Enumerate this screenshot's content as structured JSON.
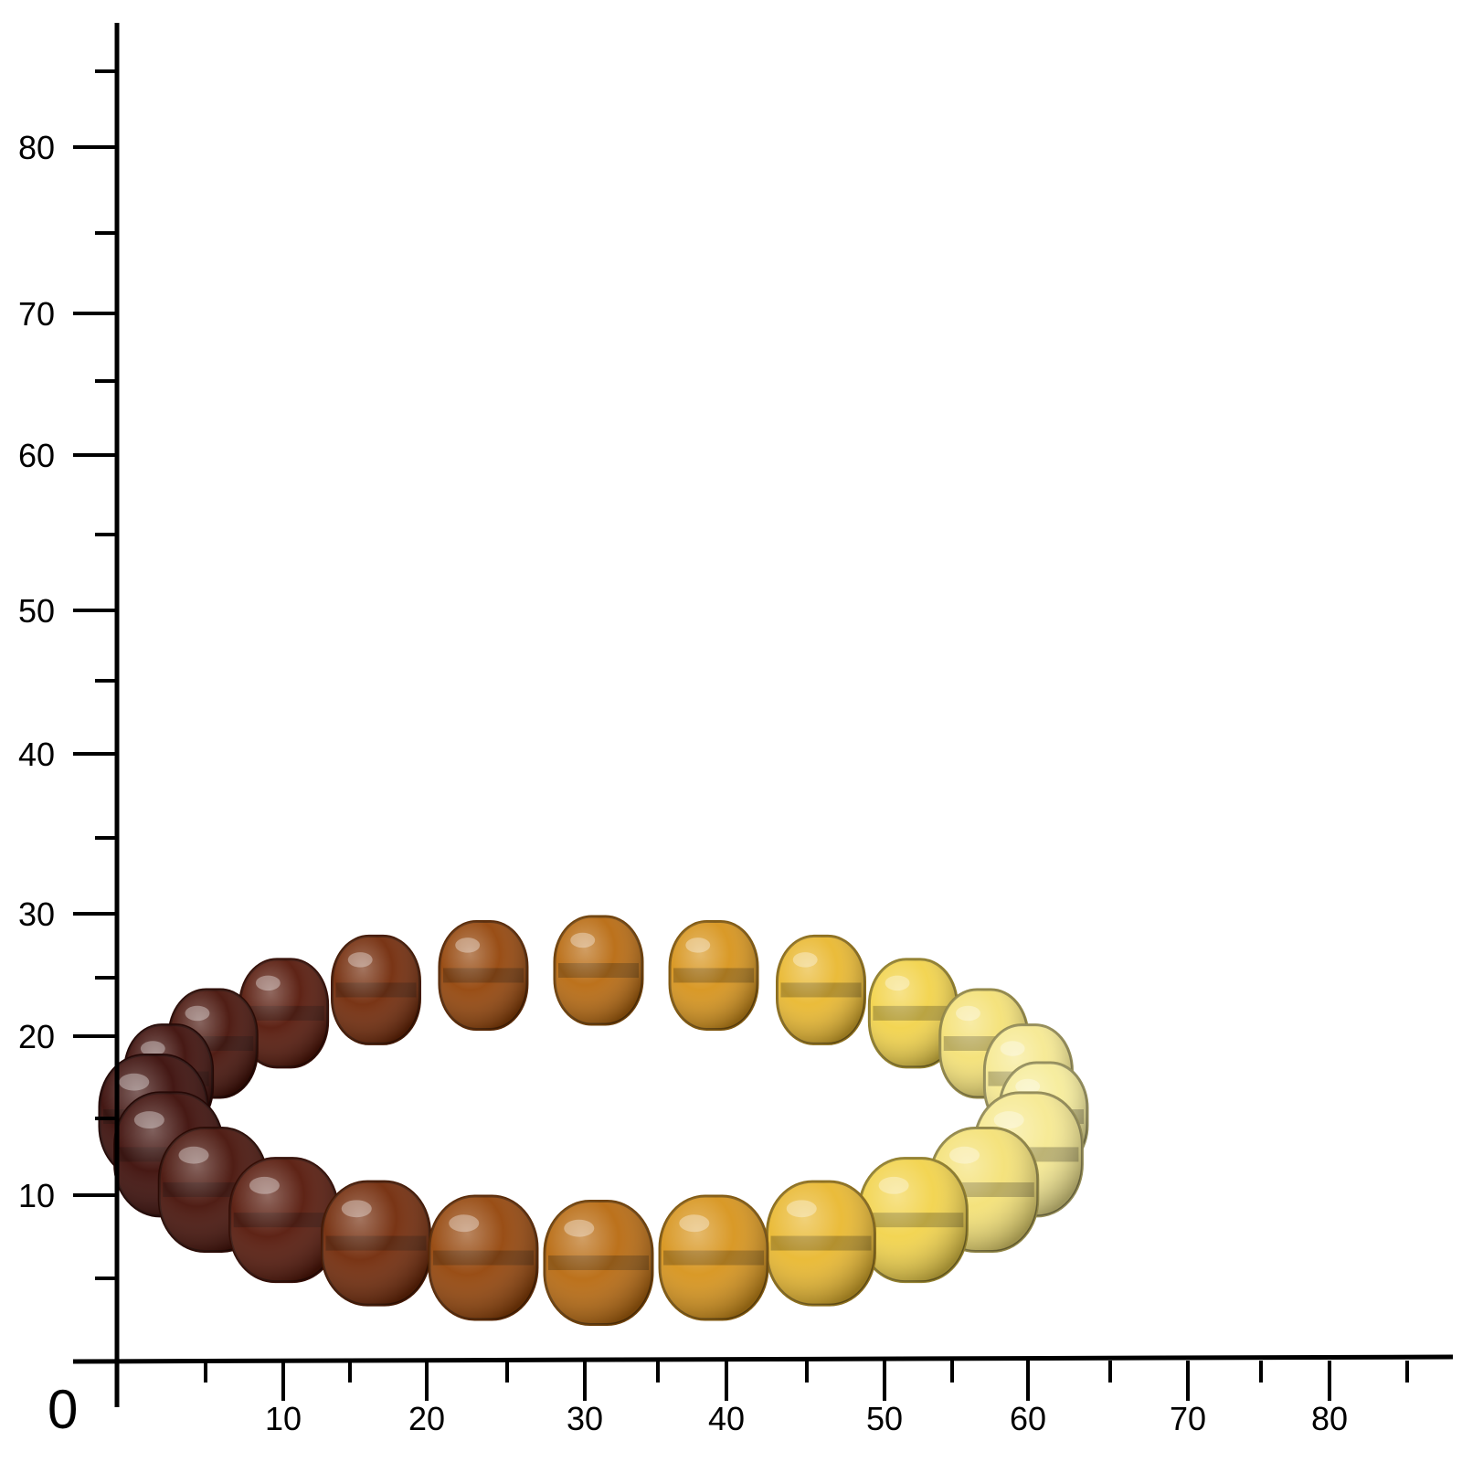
{
  "scale": {
    "origin_label": "0",
    "y_axis": {
      "major_labels": [
        "10",
        "20",
        "30",
        "40",
        "50",
        "60",
        "70",
        "80"
      ]
    },
    "x_axis": {
      "major_labels": [
        "10",
        "20",
        "30",
        "40",
        "50",
        "60",
        "70",
        "80"
      ]
    }
  },
  "subject": {
    "kind": "amber-bracelet",
    "bead_count": 24,
    "color_gradient": [
      "#3a0c08",
      "#5a1a0a",
      "#8a3a08",
      "#b86a10",
      "#e0a020",
      "#f2d040",
      "#f6ec9a"
    ]
  }
}
